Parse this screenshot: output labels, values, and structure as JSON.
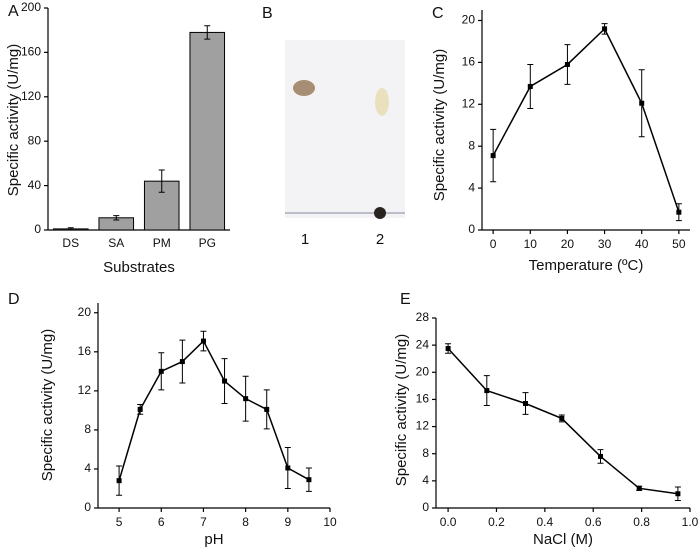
{
  "chart_data": [
    {
      "type": "bar",
      "panel_label": "A",
      "y_label": "Specific activity (U/mg)",
      "x_label": "Substrates",
      "categories": [
        "DS",
        "SA",
        "PM",
        "PG"
      ],
      "values": [
        1,
        11,
        44,
        178
      ],
      "errors": [
        1,
        2,
        10,
        6
      ],
      "color": "#a0a0a0",
      "ylim": [
        0,
        200
      ],
      "yticks": [
        0,
        40,
        80,
        120,
        160,
        200
      ]
    },
    {
      "type": "image",
      "panel_label": "B",
      "lane_labels": [
        "1",
        "2"
      ]
    },
    {
      "type": "line",
      "panel_label": "C",
      "y_label": "Specific activity (U/mg)",
      "x_label": "Temperature (ºC)",
      "x": [
        0,
        10,
        20,
        30,
        40,
        50
      ],
      "values": [
        7.1,
        13.7,
        15.8,
        19.2,
        12.1,
        1.7
      ],
      "errors": [
        2.5,
        2.1,
        1.9,
        0.5,
        3.2,
        0.8
      ],
      "color": "#000000",
      "xlim": [
        -3,
        53
      ],
      "xticks": [
        0,
        10,
        20,
        30,
        40,
        50
      ],
      "ylim": [
        0,
        21
      ],
      "yticks": [
        0,
        4,
        8,
        12,
        16,
        20
      ]
    },
    {
      "type": "line",
      "panel_label": "D",
      "y_label": "Specific activity (U/mg)",
      "x_label": "pH",
      "x": [
        5,
        5.5,
        6,
        6.5,
        7,
        7.5,
        8,
        8.5,
        9,
        9.5
      ],
      "values": [
        2.8,
        10.1,
        14.0,
        15.0,
        17.1,
        13.0,
        11.2,
        10.1,
        4.1,
        2.9
      ],
      "errors": [
        1.5,
        0.5,
        1.9,
        2.2,
        1.0,
        2.3,
        2.3,
        2.0,
        2.1,
        1.2
      ],
      "color": "#000000",
      "xlim": [
        4.5,
        10
      ],
      "xticks": [
        5,
        6,
        7,
        8,
        9,
        10
      ],
      "ylim": [
        0,
        21
      ],
      "yticks": [
        0,
        4,
        8,
        12,
        16,
        20
      ]
    },
    {
      "type": "line",
      "panel_label": "E",
      "y_label": "Specific activity (U/mg)",
      "x_label": "NaCl (M)",
      "x": [
        0,
        0.16,
        0.32,
        0.47,
        0.63,
        0.79,
        0.95
      ],
      "values": [
        23.5,
        17.3,
        15.4,
        13.2,
        7.6,
        2.9,
        2.1
      ],
      "errors": [
        0.7,
        2.2,
        1.6,
        0.5,
        1.0,
        0.3,
        1.0
      ],
      "color": "#000000",
      "xlim": [
        -0.05,
        1.0
      ],
      "xticks": [
        {
          "value": 0,
          "label": "0.0"
        },
        0.2,
        0.4,
        0.6,
        0.8,
        {
          "value": 1,
          "label": "1.0"
        }
      ],
      "ylim": [
        0,
        28
      ],
      "yticks": [
        0,
        4,
        8,
        12,
        16,
        20,
        24,
        28
      ]
    }
  ]
}
